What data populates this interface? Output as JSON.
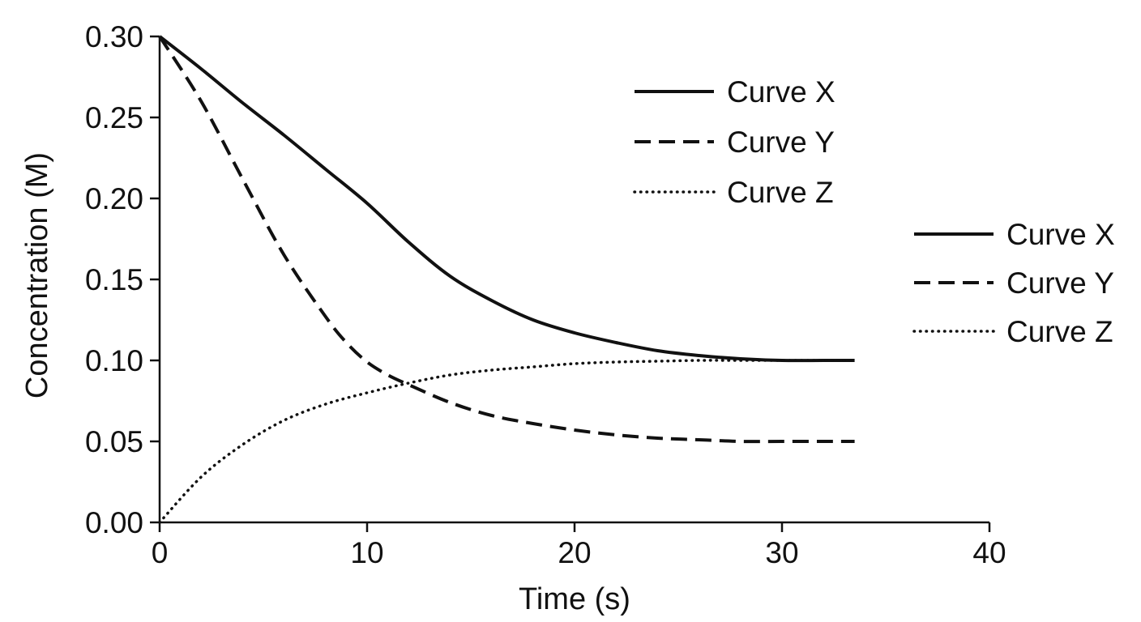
{
  "chart_data": {
    "type": "line",
    "title": "",
    "xlabel": "Time (s)",
    "ylabel": "Concentration (M)",
    "xlim": [
      0,
      40
    ],
    "ylim": [
      0,
      0.3
    ],
    "xticks": [
      0,
      10,
      20,
      30,
      40
    ],
    "xtick_labels": [
      "0",
      "10",
      "20",
      "30",
      "40"
    ],
    "yticks": [
      0,
      0.05,
      0.1,
      0.15,
      0.2,
      0.25,
      0.3
    ],
    "ytick_labels": [
      "0.00",
      "0.05",
      "0.10",
      "0.15",
      "0.20",
      "0.25",
      "0.30"
    ],
    "grid": false,
    "legend_placement": [
      "top-center",
      "right-outside"
    ],
    "series": [
      {
        "name": "Curve X",
        "style": "solid",
        "color": "#111111",
        "x": [
          0,
          2,
          4,
          6,
          8,
          10,
          12,
          14,
          16,
          18,
          20,
          22,
          24,
          26,
          28,
          30,
          32,
          33.5
        ],
        "y": [
          0.3,
          0.28,
          0.259,
          0.239,
          0.218,
          0.197,
          0.173,
          0.152,
          0.137,
          0.125,
          0.117,
          0.111,
          0.106,
          0.103,
          0.101,
          0.1,
          0.1,
          0.1
        ]
      },
      {
        "name": "Curve Y",
        "style": "dashed",
        "color": "#111111",
        "x": [
          0,
          2,
          4,
          6,
          8,
          9,
          10,
          11,
          12,
          14,
          16,
          18,
          20,
          22,
          24,
          26,
          28,
          30,
          32,
          33.5
        ],
        "y": [
          0.3,
          0.26,
          0.212,
          0.165,
          0.127,
          0.111,
          0.099,
          0.091,
          0.085,
          0.074,
          0.066,
          0.061,
          0.057,
          0.054,
          0.052,
          0.051,
          0.05,
          0.05,
          0.05,
          0.05
        ]
      },
      {
        "name": "Curve Z",
        "style": "dotted",
        "color": "#111111",
        "x": [
          0,
          2,
          4,
          6,
          8,
          10,
          12,
          14,
          16,
          18,
          20,
          22,
          24,
          26,
          28,
          30,
          32,
          33.5
        ],
        "y": [
          0.0,
          0.028,
          0.048,
          0.063,
          0.073,
          0.08,
          0.086,
          0.091,
          0.094,
          0.096,
          0.098,
          0.099,
          0.0995,
          0.1,
          0.1,
          0.1,
          0.1,
          0.1
        ]
      }
    ],
    "legends": [
      {
        "entries": [
          "Curve X",
          "Curve Y",
          "Curve Z"
        ]
      },
      {
        "entries": [
          "Curve X",
          "Curve Y",
          "Curve Z"
        ]
      }
    ]
  }
}
